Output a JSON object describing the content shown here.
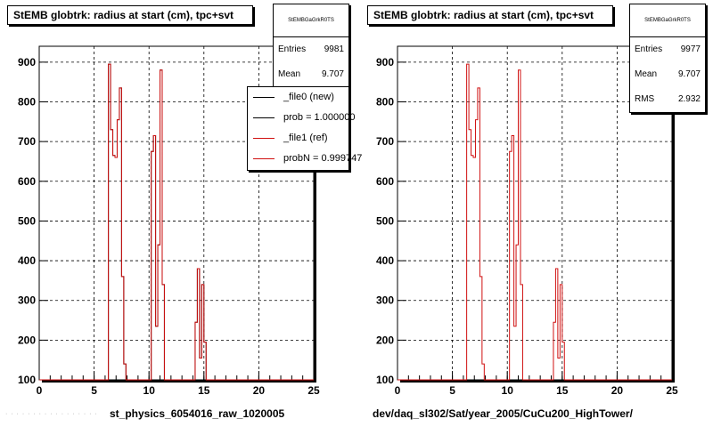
{
  "chart_data": [
    {
      "type": "histogram",
      "title": "StEMB globtrk: radius at start (cm), tpc+svt",
      "xlabel": "st_physics_6054016_raw_1020005",
      "ylabel": "",
      "xlim": [
        0,
        25
      ],
      "ylim": [
        100,
        940
      ],
      "x_ticks": [
        0,
        5,
        10,
        15,
        20,
        25
      ],
      "y_ticks": [
        100,
        200,
        300,
        400,
        500,
        600,
        700,
        800,
        900
      ],
      "grid": true,
      "bin_edges": [
        6.3,
        6.5,
        6.7,
        6.9,
        7.1,
        7.3,
        7.5,
        7.7,
        7.9,
        8.1,
        8.3,
        10.2,
        10.4,
        10.6,
        10.8,
        11.0,
        11.2,
        11.4,
        11.6,
        11.8,
        14.2,
        14.4,
        14.6,
        14.8,
        15.0,
        15.2,
        15.4
      ],
      "series": [
        {
          "name": "_file0 (new)",
          "color": "#000000",
          "values": [
            895,
            730,
            665,
            660,
            755,
            835,
            360,
            140,
            100,
            100,
            100,
            675,
            715,
            235,
            440,
            880,
            340,
            100,
            100,
            100,
            245,
            380,
            155,
            340,
            195,
            100
          ]
        },
        {
          "name": "_file1 (ref)",
          "color": "#d01010",
          "values": [
            895,
            730,
            665,
            660,
            755,
            835,
            360,
            140,
            100,
            100,
            100,
            675,
            715,
            235,
            440,
            880,
            340,
            100,
            100,
            100,
            245,
            380,
            155,
            340,
            195,
            100
          ]
        }
      ],
      "stats": {
        "name": "StEMBGaGrkR0TS",
        "entries_label": "Entries",
        "entries": "9981",
        "mean_label": "Mean",
        "mean": "9.707"
      },
      "legend": [
        {
          "label": "_file0 (new)",
          "color": "#000000"
        },
        {
          "label": "prob = 1.000000",
          "color": "#000000"
        },
        {
          "label": "_file1 (ref)",
          "color": "#d01010"
        },
        {
          "label": "probN = 0.999747",
          "color": "#d01010"
        }
      ]
    },
    {
      "type": "histogram",
      "title": "StEMB globtrk: radius at start (cm), tpc+svt",
      "xlabel": "dev/daq_sl302/Sat/year_2005/CuCu200_HighTower/",
      "ylabel": "",
      "xlim": [
        0,
        25
      ],
      "ylim": [
        100,
        940
      ],
      "x_ticks": [
        0,
        5,
        10,
        15,
        20,
        25
      ],
      "y_ticks": [
        100,
        200,
        300,
        400,
        500,
        600,
        700,
        800,
        900
      ],
      "grid": true,
      "bin_edges": [
        6.3,
        6.5,
        6.7,
        6.9,
        7.1,
        7.3,
        7.5,
        7.7,
        7.9,
        8.1,
        8.3,
        10.2,
        10.4,
        10.6,
        10.8,
        11.0,
        11.2,
        11.4,
        11.6,
        11.8,
        14.2,
        14.4,
        14.6,
        14.8,
        15.0,
        15.2,
        15.4
      ],
      "series": [
        {
          "name": "",
          "color": "#d01010",
          "values": [
            895,
            730,
            665,
            660,
            755,
            835,
            360,
            140,
            100,
            100,
            100,
            675,
            715,
            235,
            440,
            880,
            340,
            100,
            100,
            100,
            245,
            380,
            155,
            340,
            195,
            100
          ]
        }
      ],
      "stats": {
        "name": "StEMBGaGrkR0TS",
        "entries_label": "Entries",
        "entries": "9977",
        "mean_label": "Mean",
        "mean": "9.707",
        "rms_label": "RMS",
        "rms": "2.932"
      }
    }
  ],
  "footer_stamp": "· · · · · · · · · · · · · · · · ·"
}
